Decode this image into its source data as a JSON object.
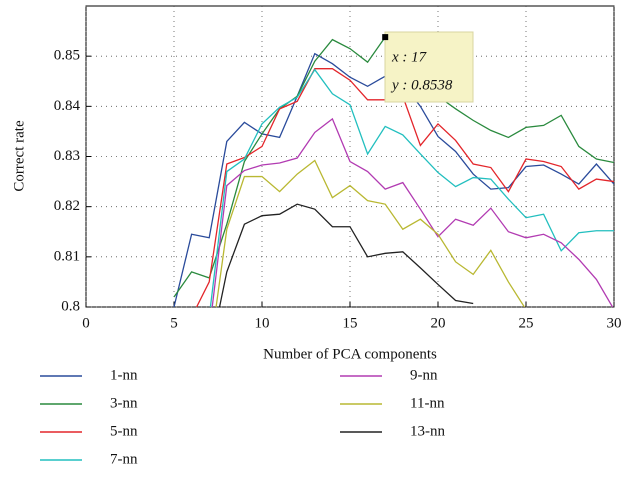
{
  "chart_data": {
    "type": "line",
    "x_label": "Number of PCA components",
    "y_label": "Correct rate",
    "x": [
      5,
      6,
      7,
      8,
      9,
      10,
      11,
      12,
      13,
      14,
      15,
      16,
      17,
      18,
      19,
      20,
      21,
      22,
      23,
      24,
      25,
      26,
      27,
      28,
      29,
      30
    ],
    "series": [
      {
        "name": "1-nn",
        "color": "#2a4b9b",
        "values": [
          0.8,
          0.8145,
          0.8138,
          0.833,
          0.8368,
          0.8345,
          0.8338,
          0.842,
          0.8505,
          0.8485,
          0.8458,
          0.844,
          0.846,
          0.8445,
          0.84,
          0.834,
          0.831,
          0.8265,
          0.8235,
          0.8238,
          0.828,
          0.8283,
          0.8265,
          0.8245,
          0.8285,
          0.8245
        ]
      },
      {
        "name": "3-nn",
        "color": "#2a8a3e",
        "values": [
          0.802,
          0.807,
          0.8058,
          0.8165,
          0.829,
          0.8345,
          0.8395,
          0.842,
          0.849,
          0.8533,
          0.8515,
          0.8488,
          0.8538,
          0.8435,
          0.8455,
          0.842,
          0.8395,
          0.8372,
          0.8352,
          0.8338,
          0.8358,
          0.8362,
          0.8382,
          0.832,
          0.8295,
          0.8288
        ]
      },
      {
        "name": "5-nn",
        "color": "#e3262b",
        "values": [
          0.795,
          0.798,
          0.805,
          0.8285,
          0.8298,
          0.832,
          0.8395,
          0.841,
          0.8475,
          0.8475,
          0.8452,
          0.8413,
          0.8413,
          0.842,
          0.8322,
          0.8365,
          0.8332,
          0.8285,
          0.8278,
          0.823,
          0.8295,
          0.829,
          0.828,
          0.8235,
          0.8255,
          0.825
        ]
      },
      {
        "name": "7-nn",
        "color": "#22bfbf",
        "values": [
          0.79,
          0.795,
          0.798,
          0.827,
          0.8295,
          0.8365,
          0.8398,
          0.8418,
          0.8473,
          0.8425,
          0.8403,
          0.8305,
          0.836,
          0.8343,
          0.8305,
          0.8268,
          0.824,
          0.8258,
          0.8255,
          0.8215,
          0.8178,
          0.8185,
          0.8112,
          0.8148,
          0.8152,
          0.8152
        ]
      },
      {
        "name": "9-nn",
        "color": "#b23bb2",
        "values": [
          null,
          0.79,
          0.795,
          0.8242,
          0.8272,
          0.8283,
          0.8287,
          0.8297,
          0.8348,
          0.8375,
          0.829,
          0.827,
          0.8235,
          0.8248,
          0.8195,
          0.814,
          0.8175,
          0.8163,
          0.8197,
          0.815,
          0.8138,
          0.8145,
          0.8128,
          0.8095,
          0.8055,
          0.7995
        ]
      },
      {
        "name": "11-nn",
        "color": "#b9b832",
        "values": [
          null,
          null,
          0.79,
          0.8155,
          0.826,
          0.826,
          0.823,
          0.8265,
          0.8292,
          0.8218,
          0.8242,
          0.8212,
          0.8205,
          0.8155,
          0.8175,
          0.8145,
          0.809,
          0.8065,
          0.8113,
          0.805,
          0.7995,
          null,
          null,
          null,
          null,
          null
        ]
      },
      {
        "name": "13-nn",
        "color": "#222222",
        "values": [
          null,
          null,
          0.79,
          0.807,
          0.8165,
          0.8182,
          0.8185,
          0.8205,
          0.8195,
          0.816,
          0.816,
          0.81,
          0.8107,
          0.811,
          0.8078,
          0.8045,
          0.8013,
          0.8007,
          null,
          null,
          null,
          null,
          null,
          null,
          null,
          null
        ]
      }
    ],
    "xlim": [
      0,
      30
    ],
    "xticks": [
      0,
      5,
      10,
      15,
      20,
      25,
      30
    ],
    "ylim": [
      0.8,
      0.86
    ],
    "yticks": [
      0.8,
      0.81,
      0.82,
      0.83,
      0.84,
      0.85
    ],
    "grid": true,
    "annotations": [
      "x : 17",
      "y : 0.8538"
    ]
  }
}
